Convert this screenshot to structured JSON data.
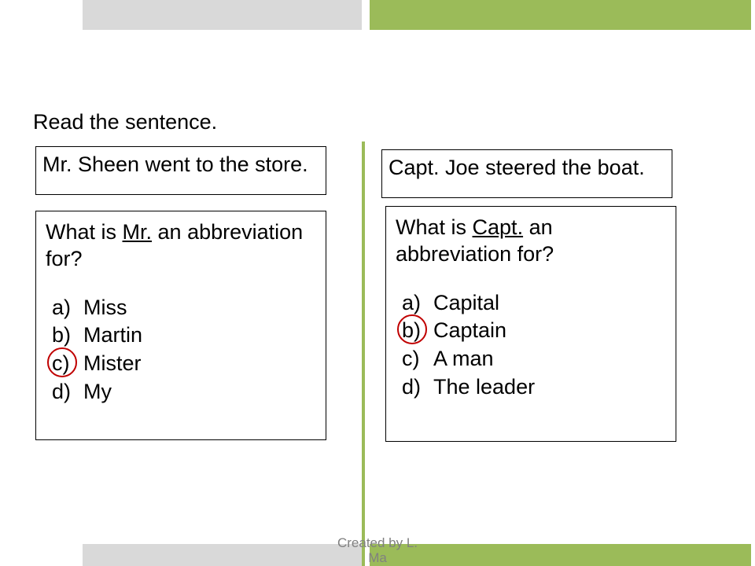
{
  "colors": {
    "bar_gray": "#d9d9d9",
    "accent_green": "#9bbb59",
    "circle_red": "#c00000",
    "text": "#000000",
    "footer_gray": "#808080",
    "background": "#ffffff"
  },
  "instruction": "Read the sentence.",
  "left": {
    "sentence": "Mr. Sheen went to the store.",
    "question_pre": "What is ",
    "question_abbr": "Mr.",
    "question_post": " an abbreviation for?",
    "options": [
      {
        "letter": "a)",
        "text": "Miss"
      },
      {
        "letter": "b)",
        "text": "Martin"
      },
      {
        "letter": "c)",
        "text": "Mister"
      },
      {
        "letter": "d)",
        "text": "My"
      }
    ],
    "circled_index": 2
  },
  "right": {
    "sentence": "Capt. Joe steered the boat.",
    "question_pre": "What is ",
    "question_abbr": "Capt.",
    "question_post": " an abbreviation for?",
    "options": [
      {
        "letter": "a)",
        "text": "Capital"
      },
      {
        "letter": "b)",
        "text": "Captain"
      },
      {
        "letter": "c)",
        "text": "A man"
      },
      {
        "letter": "d)",
        "text": "The leader"
      }
    ],
    "circled_index": 1
  },
  "footer_line1": "Created by L.",
  "footer_line2": "Ma"
}
